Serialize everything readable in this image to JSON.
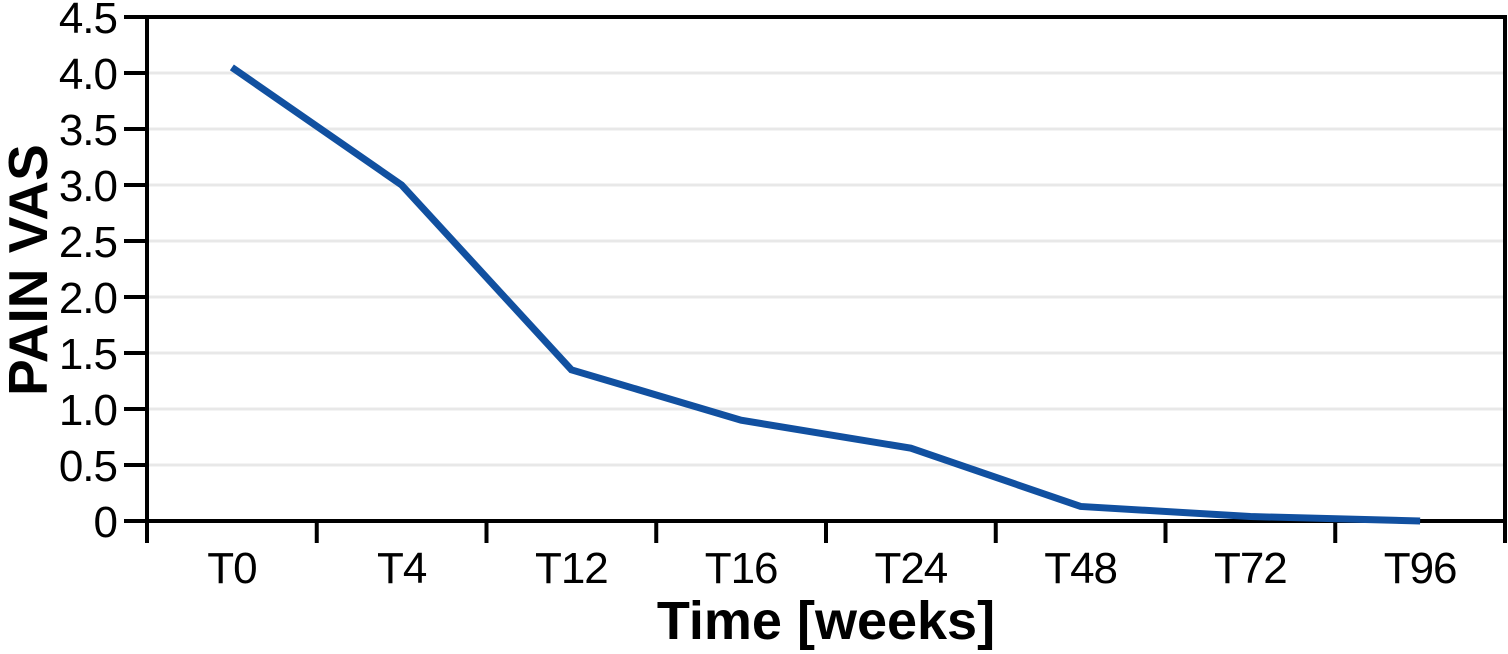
{
  "chart_data": {
    "type": "line",
    "title": "",
    "xlabel": "Time [weeks]",
    "ylabel": "PAIN VAS",
    "categories": [
      "T0",
      "T4",
      "T12",
      "T16",
      "T24",
      "T48",
      "T72",
      "T96"
    ],
    "series": [
      {
        "name": "PAIN VAS",
        "values": [
          4.05,
          3.0,
          1.35,
          0.9,
          0.65,
          0.13,
          0.04,
          0
        ]
      }
    ],
    "ylim": [
      0,
      4.5
    ],
    "ytick_step": 0.5,
    "ytick_labels": [
      "4.5",
      "4.0",
      "3.5",
      "3.0",
      "2.5",
      "2.0",
      "1.5",
      "1.0",
      "0.5",
      "0"
    ],
    "grid": "horizontal",
    "legend": false,
    "layout_hints": {
      "x_axis_style": "category bands, ticks at band boundaries, labels centered in bands",
      "plot_border": "closed black box",
      "legend_position": "none"
    },
    "colors": {
      "line": "#1150A0",
      "grid": "#E8E8E8",
      "axis": "#000000",
      "text": "#000000"
    }
  }
}
